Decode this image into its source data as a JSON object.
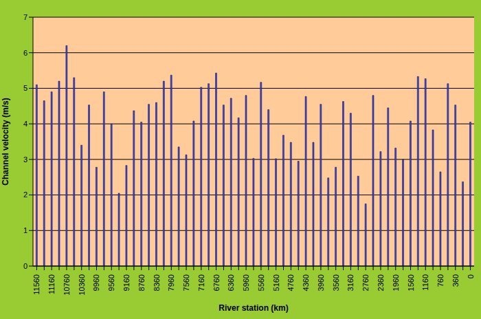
{
  "chart_data": {
    "type": "bar",
    "x_label": "River station (km)",
    "y_label": "Channel velocity (m/s)",
    "categories": [
      "11560",
      null,
      "11160",
      null,
      "10760",
      null,
      "10360",
      null,
      "9960",
      null,
      "9560",
      null,
      "9160",
      null,
      "8760",
      null,
      "8360",
      null,
      "7960",
      null,
      "7560",
      null,
      "7160",
      null,
      "6760",
      null,
      "6360",
      null,
      "5960",
      null,
      "5560",
      null,
      "5160",
      null,
      "4760",
      null,
      "4360",
      null,
      "3960",
      null,
      "3560",
      null,
      "3160",
      null,
      "2760",
      null,
      "2360",
      null,
      "1960",
      null,
      "1560",
      null,
      "1160",
      null,
      "760",
      null,
      "360",
      null,
      "0"
    ],
    "values": [
      5.1,
      4.65,
      4.9,
      5.2,
      6.2,
      5.3,
      3.4,
      4.53,
      2.78,
      4.9,
      4.0,
      2.05,
      2.83,
      4.37,
      4.05,
      4.55,
      4.6,
      5.2,
      5.37,
      3.35,
      3.13,
      4.08,
      5.03,
      5.13,
      5.43,
      4.53,
      4.72,
      4.17,
      4.8,
      3.03,
      5.17,
      4.4,
      3.02,
      3.68,
      3.48,
      2.95,
      4.77,
      3.48,
      4.55,
      2.48,
      2.78,
      4.63,
      4.3,
      2.53,
      1.75,
      4.8,
      3.22,
      4.45,
      3.32,
      3.0,
      4.08,
      5.33,
      5.27,
      3.83,
      2.65,
      5.13,
      4.53,
      2.37,
      4.05
    ],
    "color": "#3f47c8",
    "ylim": [
      0,
      7
    ],
    "yticks": [
      0,
      1,
      2,
      3,
      4,
      5,
      6,
      7
    ],
    "grid": true
  }
}
